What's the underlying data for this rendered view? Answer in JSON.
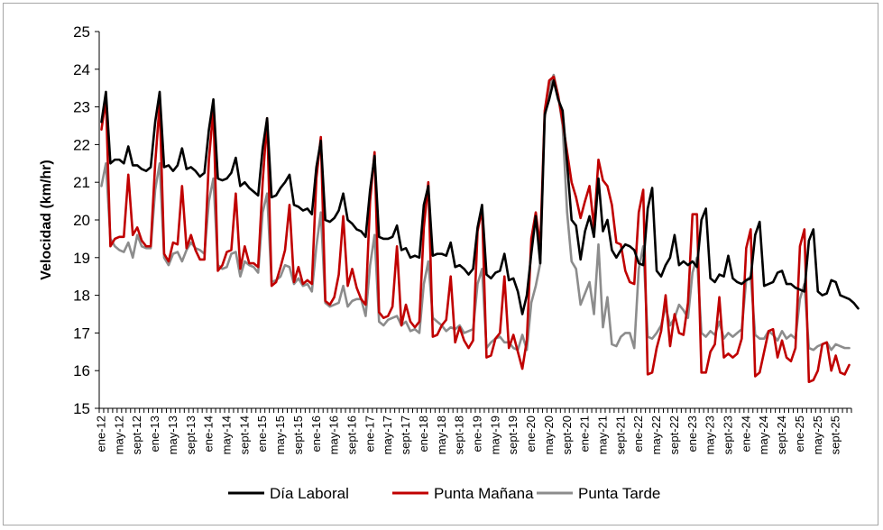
{
  "chart_data": {
    "type": "line",
    "title": "",
    "ylabel": "Velocidad (km/hr)",
    "xlabel": "",
    "ylim": [
      15,
      25
    ],
    "yticks": [
      15,
      16,
      17,
      18,
      19,
      20,
      21,
      22,
      23,
      24,
      25
    ],
    "x_start": "ene-12",
    "n_points": 168,
    "xtick_labels": [
      "ene-12",
      "may-12",
      "sept-12",
      "ene-13",
      "may-13",
      "sept-13",
      "ene-14",
      "may-14",
      "sept-14",
      "ene-15",
      "may-15",
      "sept-15",
      "ene-16",
      "may-16",
      "sept-16",
      "ene-17",
      "may-17",
      "sept-17",
      "ene-18",
      "may-18",
      "sept-18",
      "ene-19",
      "may-19",
      "sept-19",
      "ene-20",
      "may-20",
      "sept-20",
      "ene-21",
      "may-21",
      "sept-21",
      "ene-22",
      "may-22",
      "sept-22",
      "ene-23",
      "may-23",
      "sept-23",
      "ene-24",
      "may-24",
      "sept-24",
      "ene-25",
      "may-25",
      "sept-25"
    ],
    "legend_position": "bottom",
    "grid": false,
    "series": [
      {
        "name": "Día Laboral",
        "color": "#000000",
        "values": [
          22.6,
          23.4,
          21.5,
          21.6,
          21.6,
          21.5,
          21.95,
          21.45,
          21.45,
          21.35,
          21.3,
          21.4,
          22.6,
          23.4,
          21.4,
          21.45,
          21.3,
          21.45,
          21.9,
          21.35,
          21.4,
          21.3,
          21.15,
          21.25,
          22.4,
          23.2,
          21.1,
          21.05,
          21.1,
          21.25,
          21.65,
          20.9,
          21.0,
          20.85,
          20.75,
          20.65,
          21.9,
          22.7,
          20.6,
          20.65,
          20.85,
          21.0,
          21.2,
          20.4,
          20.35,
          20.25,
          20.3,
          20.15,
          21.4,
          22.1,
          20.0,
          19.95,
          20.05,
          20.25,
          20.7,
          20.0,
          19.9,
          19.75,
          19.7,
          19.55,
          20.8,
          21.7,
          19.55,
          19.5,
          19.5,
          19.55,
          19.85,
          19.2,
          19.25,
          19.0,
          19.05,
          19.0,
          20.4,
          20.9,
          19.05,
          19.1,
          19.1,
          19.05,
          19.4,
          18.75,
          18.8,
          18.7,
          18.55,
          18.7,
          19.8,
          20.4,
          18.55,
          18.45,
          18.6,
          18.65,
          19.1,
          18.4,
          18.45,
          18.1,
          17.5,
          18.0,
          19.1,
          20.1,
          18.85,
          22.8,
          23.2,
          23.7,
          23.2,
          22.9,
          21.5,
          20.0,
          19.85,
          18.95,
          19.7,
          20.1,
          19.55,
          21.1,
          19.7,
          20.0,
          19.2,
          19.0,
          19.2,
          19.35,
          19.3,
          19.2,
          18.85,
          18.8,
          20.3,
          20.85,
          18.65,
          18.5,
          18.8,
          19.0,
          19.6,
          18.8,
          18.9,
          18.8,
          18.9,
          18.75,
          20.0,
          20.3,
          18.45,
          18.35,
          18.55,
          18.5,
          19.05,
          18.45,
          18.35,
          18.3,
          18.4,
          18.45,
          19.6,
          19.95,
          18.25,
          18.3,
          18.35,
          18.6,
          18.65,
          18.3,
          18.3,
          18.2,
          18.15,
          18.1,
          19.45,
          19.75,
          18.1,
          18.0,
          18.05,
          18.4,
          18.35,
          18.0,
          17.95,
          17.9,
          17.8,
          17.65
        ]
      },
      {
        "name": "Punta Mañana",
        "color": "#c00000",
        "values": [
          22.4,
          23.2,
          19.3,
          19.5,
          19.55,
          19.55,
          21.2,
          19.6,
          19.8,
          19.45,
          19.3,
          19.3,
          21.5,
          23.1,
          19.1,
          18.9,
          19.4,
          19.35,
          20.9,
          19.25,
          19.6,
          19.2,
          18.95,
          18.95,
          21.6,
          22.95,
          18.65,
          18.8,
          19.15,
          19.2,
          20.7,
          18.7,
          19.3,
          18.85,
          18.85,
          18.75,
          21.0,
          22.7,
          18.25,
          18.35,
          18.75,
          19.2,
          20.4,
          18.35,
          18.75,
          18.3,
          18.4,
          18.3,
          21.1,
          22.2,
          17.85,
          17.75,
          17.95,
          18.55,
          20.1,
          18.25,
          18.7,
          18.2,
          17.9,
          17.75,
          20.5,
          21.8,
          17.55,
          17.4,
          17.45,
          17.7,
          19.3,
          17.2,
          17.75,
          17.3,
          17.15,
          17.3,
          19.8,
          21.0,
          16.9,
          16.95,
          17.2,
          17.35,
          18.5,
          16.75,
          17.15,
          16.8,
          16.6,
          16.8,
          19.7,
          20.3,
          16.35,
          16.4,
          16.85,
          17.0,
          18.5,
          16.6,
          16.95,
          16.5,
          16.05,
          16.8,
          19.5,
          20.2,
          19.3,
          22.9,
          23.7,
          23.8,
          23.3,
          22.6,
          21.8,
          21.0,
          20.6,
          20.05,
          20.5,
          20.9,
          19.8,
          21.6,
          21.05,
          20.9,
          20.4,
          19.4,
          19.35,
          18.65,
          18.35,
          18.3,
          20.2,
          20.8,
          15.9,
          15.95,
          16.6,
          17.05,
          18.0,
          16.65,
          17.5,
          17.0,
          16.95,
          17.8,
          20.15,
          20.15,
          15.95,
          15.95,
          16.5,
          16.7,
          17.95,
          16.35,
          16.45,
          16.35,
          16.45,
          16.85,
          19.25,
          19.75,
          15.85,
          15.95,
          16.5,
          17.05,
          17.1,
          16.35,
          16.8,
          16.35,
          16.25,
          16.6,
          19.3,
          19.75,
          15.7,
          15.75,
          16.0,
          16.7,
          16.75,
          16.0,
          16.4,
          15.95,
          15.9,
          16.15
        ]
      },
      {
        "name": "Punta Tarde",
        "color": "#8c8c8c",
        "values": [
          20.9,
          21.5,
          19.5,
          19.3,
          19.2,
          19.15,
          19.4,
          19.0,
          19.6,
          19.3,
          19.25,
          19.25,
          20.8,
          21.5,
          19.0,
          18.8,
          19.1,
          19.15,
          18.9,
          19.2,
          19.4,
          19.25,
          19.2,
          19.1,
          20.5,
          21.1,
          18.8,
          18.7,
          18.75,
          19.1,
          19.15,
          18.5,
          18.9,
          18.8,
          18.75,
          18.6,
          20.2,
          20.7,
          18.35,
          18.4,
          18.5,
          18.8,
          18.75,
          18.3,
          18.45,
          18.25,
          18.3,
          18.1,
          19.3,
          20.2,
          17.8,
          17.7,
          17.75,
          17.8,
          18.25,
          17.7,
          17.85,
          17.9,
          17.9,
          17.45,
          18.8,
          19.6,
          17.3,
          17.2,
          17.35,
          17.4,
          17.45,
          17.2,
          17.3,
          17.05,
          17.1,
          17.0,
          18.3,
          18.9,
          17.4,
          17.3,
          17.2,
          17.05,
          17.15,
          17.1,
          17.2,
          17.0,
          17.05,
          17.1,
          18.3,
          18.7,
          16.6,
          16.75,
          16.85,
          16.9,
          16.75,
          16.75,
          16.6,
          16.55,
          16.95,
          16.55,
          17.8,
          18.25,
          18.85,
          22.7,
          23.5,
          23.85,
          23.3,
          22.5,
          20.2,
          18.9,
          18.7,
          17.75,
          18.05,
          18.35,
          17.5,
          19.35,
          17.15,
          17.95,
          16.7,
          16.65,
          16.9,
          17.0,
          17.0,
          16.6,
          18.7,
          19.3,
          16.9,
          16.85,
          17.0,
          17.2,
          17.7,
          17.2,
          17.4,
          17.75,
          17.6,
          17.4,
          18.6,
          19.0,
          17.0,
          16.9,
          17.05,
          16.95,
          17.3,
          16.85,
          17.0,
          16.9,
          17.0,
          17.1,
          18.4,
          18.5,
          16.95,
          16.85,
          16.85,
          17.05,
          16.95,
          16.8,
          17.05,
          16.85,
          16.95,
          16.85,
          17.9,
          18.3,
          16.6,
          16.55,
          16.65,
          16.7,
          16.75,
          16.55,
          16.7,
          16.65,
          16.6,
          16.6
        ]
      }
    ]
  }
}
